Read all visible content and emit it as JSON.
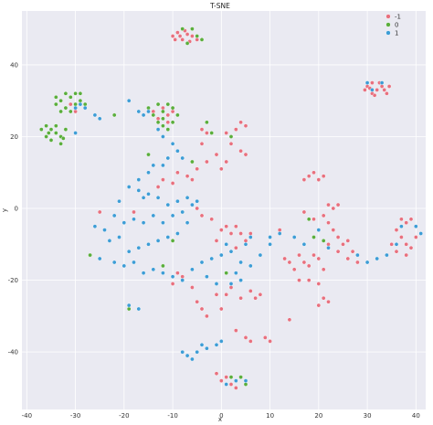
{
  "chart_data": {
    "type": "scatter",
    "title": "T-SNE",
    "xlabel": "x",
    "ylabel": "y",
    "xlim": [
      -41,
      42
    ],
    "ylim": [
      -56,
      55
    ],
    "xticks": [
      -40,
      -30,
      -20,
      -10,
      0,
      10,
      20,
      30,
      40
    ],
    "yticks": [
      -40,
      -20,
      0,
      20,
      40
    ],
    "grid": true,
    "background": "#eaeaf2",
    "legend": {
      "placement": "top-right",
      "entries": [
        "-1",
        "0",
        "1"
      ]
    },
    "series": [
      {
        "name": "-1",
        "color": "#e8707e",
        "points": [
          [
            -10,
            48
          ],
          [
            -9,
            49
          ],
          [
            -8,
            47
          ],
          [
            -7,
            48.5
          ],
          [
            -6,
            48
          ],
          [
            -5,
            47
          ],
          [
            -9.5,
            47
          ],
          [
            -7.5,
            49.5
          ],
          [
            -6.5,
            46.5
          ],
          [
            -8.5,
            48
          ],
          [
            30,
            34
          ],
          [
            31,
            35
          ],
          [
            32,
            33
          ],
          [
            33,
            34
          ],
          [
            34,
            32
          ],
          [
            31,
            32
          ],
          [
            30.5,
            33.5
          ],
          [
            32.5,
            35
          ],
          [
            33.5,
            33
          ],
          [
            31.5,
            31.5
          ],
          [
            29.5,
            33
          ],
          [
            34.5,
            34
          ],
          [
            -33,
            30
          ],
          [
            -31,
            29
          ],
          [
            -30,
            27
          ],
          [
            -32,
            28
          ],
          [
            -14,
            27
          ],
          [
            -12,
            28
          ],
          [
            -11,
            26
          ],
          [
            -10,
            27
          ],
          [
            -13,
            25
          ],
          [
            -11,
            24
          ],
          [
            -4,
            22
          ],
          [
            -3,
            21
          ],
          [
            -4,
            18
          ],
          [
            1,
            21
          ],
          [
            3,
            22
          ],
          [
            4,
            24
          ],
          [
            5,
            23
          ],
          [
            2,
            18
          ],
          [
            4,
            16
          ],
          [
            5,
            15
          ],
          [
            -1,
            15
          ],
          [
            -3,
            13
          ],
          [
            0,
            11
          ],
          [
            1,
            13
          ],
          [
            -5,
            11
          ],
          [
            -7,
            9
          ],
          [
            -6,
            8
          ],
          [
            -9,
            10
          ],
          [
            -10,
            7
          ],
          [
            -13,
            6
          ],
          [
            -12,
            8
          ],
          [
            -17,
            5
          ],
          [
            -21,
            2
          ],
          [
            -18,
            -1
          ],
          [
            -5,
            0
          ],
          [
            -4,
            -2
          ],
          [
            -2,
            -3
          ],
          [
            0,
            -6
          ],
          [
            1,
            -5
          ],
          [
            2,
            -7
          ],
          [
            3,
            -5
          ],
          [
            4,
            -7
          ],
          [
            5,
            -9
          ],
          [
            6,
            -7
          ],
          [
            -1,
            -9
          ],
          [
            3,
            -11
          ],
          [
            -9,
            -18
          ],
          [
            -8,
            -19
          ],
          [
            -10,
            -21
          ],
          [
            -6,
            -22
          ],
          [
            -5,
            -26
          ],
          [
            -4,
            -28
          ],
          [
            -3,
            -30
          ],
          [
            -1,
            -24
          ],
          [
            0,
            -28
          ],
          [
            1,
            -24
          ],
          [
            2,
            -22
          ],
          [
            4,
            -25
          ],
          [
            6,
            -23
          ],
          [
            7,
            -25
          ],
          [
            8,
            -24
          ],
          [
            3,
            -34
          ],
          [
            5,
            -36
          ],
          [
            6,
            -37
          ],
          [
            9,
            -36
          ],
          [
            10,
            -37
          ],
          [
            14,
            -31
          ],
          [
            18,
            9
          ],
          [
            19,
            10
          ],
          [
            20,
            8
          ],
          [
            21,
            9
          ],
          [
            17,
            8
          ],
          [
            12,
            -6
          ],
          [
            13,
            -14
          ],
          [
            14,
            -15
          ],
          [
            15,
            -17
          ],
          [
            16,
            -13
          ],
          [
            17,
            -15
          ],
          [
            18,
            -16
          ],
          [
            19,
            -13
          ],
          [
            20,
            -14
          ],
          [
            21,
            -17
          ],
          [
            16,
            -20
          ],
          [
            18,
            -20
          ],
          [
            20,
            -21
          ],
          [
            17,
            -1
          ],
          [
            19,
            -3
          ],
          [
            21,
            -2
          ],
          [
            22,
            -4
          ],
          [
            23,
            -6
          ],
          [
            24,
            -8
          ],
          [
            25,
            -10
          ],
          [
            26,
            -9
          ],
          [
            27,
            -12
          ],
          [
            22,
            -10
          ],
          [
            24,
            -12
          ],
          [
            26,
            -14
          ],
          [
            28,
            -15
          ],
          [
            21,
            -25
          ],
          [
            22,
            -26
          ],
          [
            20,
            -27
          ],
          [
            37,
            -3
          ],
          [
            38,
            -4
          ],
          [
            39,
            -3
          ],
          [
            40,
            -5
          ],
          [
            36,
            -6
          ],
          [
            37,
            -8
          ],
          [
            38,
            -10
          ],
          [
            39,
            -11
          ],
          [
            40,
            -8
          ],
          [
            41,
            -7
          ],
          [
            35,
            -10
          ],
          [
            36,
            -12
          ],
          [
            38,
            -13
          ],
          [
            22,
            1
          ],
          [
            23,
            0
          ],
          [
            24,
            1
          ],
          [
            -25,
            -1
          ],
          [
            0,
            -48
          ],
          [
            1,
            -47
          ],
          [
            2,
            -49
          ],
          [
            3,
            -50
          ],
          [
            -1,
            -46
          ]
        ]
      },
      {
        "name": "0",
        "color": "#5aae3c",
        "points": [
          [
            -36,
            23
          ],
          [
            -35,
            22
          ],
          [
            -34,
            21
          ],
          [
            -33,
            20
          ],
          [
            -32,
            22
          ],
          [
            -36,
            20
          ],
          [
            -35,
            19
          ],
          [
            -34,
            23
          ],
          [
            -33,
            18
          ],
          [
            -37,
            22
          ],
          [
            -35.5,
            21
          ],
          [
            -32.5,
            19.5
          ],
          [
            -34,
            31
          ],
          [
            -33,
            30
          ],
          [
            -32,
            32
          ],
          [
            -31,
            31
          ],
          [
            -30,
            32
          ],
          [
            -29,
            30
          ],
          [
            -28,
            29
          ],
          [
            -34,
            29
          ],
          [
            -32,
            28
          ],
          [
            -30,
            29
          ],
          [
            -31,
            27
          ],
          [
            -33,
            27
          ],
          [
            -29,
            32
          ],
          [
            -15,
            28
          ],
          [
            -13,
            29
          ],
          [
            -12,
            27
          ],
          [
            -11,
            29
          ],
          [
            -10,
            28
          ],
          [
            -14,
            26
          ],
          [
            -12,
            25
          ],
          [
            -9,
            26
          ],
          [
            -10,
            24
          ],
          [
            -11,
            22
          ],
          [
            -13,
            24
          ],
          [
            -12,
            23
          ],
          [
            -22,
            26
          ],
          [
            -5,
            48
          ],
          [
            -6,
            50
          ],
          [
            -4,
            47
          ],
          [
            -7,
            46
          ],
          [
            -8,
            50
          ],
          [
            4,
            -47
          ],
          [
            5,
            -49
          ],
          [
            2,
            -47
          ],
          [
            -6,
            13
          ],
          [
            -8,
            -1
          ],
          [
            -10,
            -9
          ],
          [
            -12,
            -16
          ],
          [
            1,
            -18
          ],
          [
            18,
            -3
          ],
          [
            19,
            -8
          ],
          [
            -27,
            -13
          ],
          [
            -3,
            24
          ],
          [
            2,
            20
          ],
          [
            -15,
            15
          ],
          [
            -19,
            -28
          ],
          [
            -2,
            21
          ],
          [
            21,
            -9
          ]
        ]
      },
      {
        "name": "1",
        "color": "#3d9dd6",
        "points": [
          [
            -30,
            28
          ],
          [
            -29,
            29
          ],
          [
            -28,
            28
          ],
          [
            -30,
            21
          ],
          [
            -26,
            26
          ],
          [
            -25,
            25
          ],
          [
            -19,
            30
          ],
          [
            -17,
            27
          ],
          [
            -16,
            26
          ],
          [
            -15,
            27
          ],
          [
            -13,
            22
          ],
          [
            -12,
            20
          ],
          [
            -10,
            18
          ],
          [
            -9,
            16
          ],
          [
            -8,
            14
          ],
          [
            -11,
            14
          ],
          [
            -12,
            12
          ],
          [
            -14,
            12
          ],
          [
            -15,
            10
          ],
          [
            -17,
            8
          ],
          [
            -19,
            6
          ],
          [
            -17,
            5
          ],
          [
            -16,
            3
          ],
          [
            -15,
            4
          ],
          [
            -13,
            3
          ],
          [
            -11,
            1
          ],
          [
            -9,
            2
          ],
          [
            -7,
            3
          ],
          [
            -6,
            1
          ],
          [
            -5,
            2
          ],
          [
            -21,
            2
          ],
          [
            -22,
            -2
          ],
          [
            -20,
            -4
          ],
          [
            -18,
            -3
          ],
          [
            -16,
            -4
          ],
          [
            -14,
            -2
          ],
          [
            -12,
            -4
          ],
          [
            -10,
            -2
          ],
          [
            -8,
            -1
          ],
          [
            -7,
            -4
          ],
          [
            -9,
            -7
          ],
          [
            -11,
            -8
          ],
          [
            -13,
            -9
          ],
          [
            -15,
            -10
          ],
          [
            -17,
            -11
          ],
          [
            -19,
            -12
          ],
          [
            -21,
            -8
          ],
          [
            -23,
            -9
          ],
          [
            -24,
            -6
          ],
          [
            -26,
            -5
          ],
          [
            -25,
            -14
          ],
          [
            -22,
            -15
          ],
          [
            -20,
            -16
          ],
          [
            -18,
            -15
          ],
          [
            -16,
            -18
          ],
          [
            -14,
            -17
          ],
          [
            -12,
            -18
          ],
          [
            -10,
            -19
          ],
          [
            -8,
            -20
          ],
          [
            -6,
            -17
          ],
          [
            -4,
            -15
          ],
          [
            -2,
            -14
          ],
          [
            0,
            -13
          ],
          [
            2,
            -12
          ],
          [
            4,
            -15
          ],
          [
            6,
            -16
          ],
          [
            8,
            -13
          ],
          [
            10,
            -10
          ],
          [
            5,
            -10
          ],
          [
            -19,
            -27
          ],
          [
            -17,
            -28
          ],
          [
            -8,
            -40
          ],
          [
            -7,
            -41
          ],
          [
            -6,
            -42
          ],
          [
            -5,
            -40
          ],
          [
            -4,
            -38
          ],
          [
            -3,
            -39
          ],
          [
            -1,
            -38
          ],
          [
            0,
            -37
          ],
          [
            1,
            -49
          ],
          [
            3,
            -48
          ],
          [
            5,
            -48
          ],
          [
            -3,
            -19
          ],
          [
            -1,
            -21
          ],
          [
            2,
            -21
          ],
          [
            3,
            -18
          ],
          [
            4,
            -20
          ],
          [
            10,
            -8
          ],
          [
            12,
            -7
          ],
          [
            15,
            -8
          ],
          [
            17,
            -10
          ],
          [
            20,
            -6
          ],
          [
            22,
            -11
          ],
          [
            28,
            -13
          ],
          [
            30,
            -15
          ],
          [
            32,
            -14
          ],
          [
            34,
            -13
          ],
          [
            36,
            -10
          ],
          [
            41,
            -7
          ],
          [
            40,
            -5
          ],
          [
            37,
            -5
          ],
          [
            30,
            35
          ],
          [
            31,
            33
          ],
          [
            33,
            35
          ],
          [
            1,
            -10
          ],
          [
            6,
            -8
          ]
        ]
      }
    ]
  }
}
